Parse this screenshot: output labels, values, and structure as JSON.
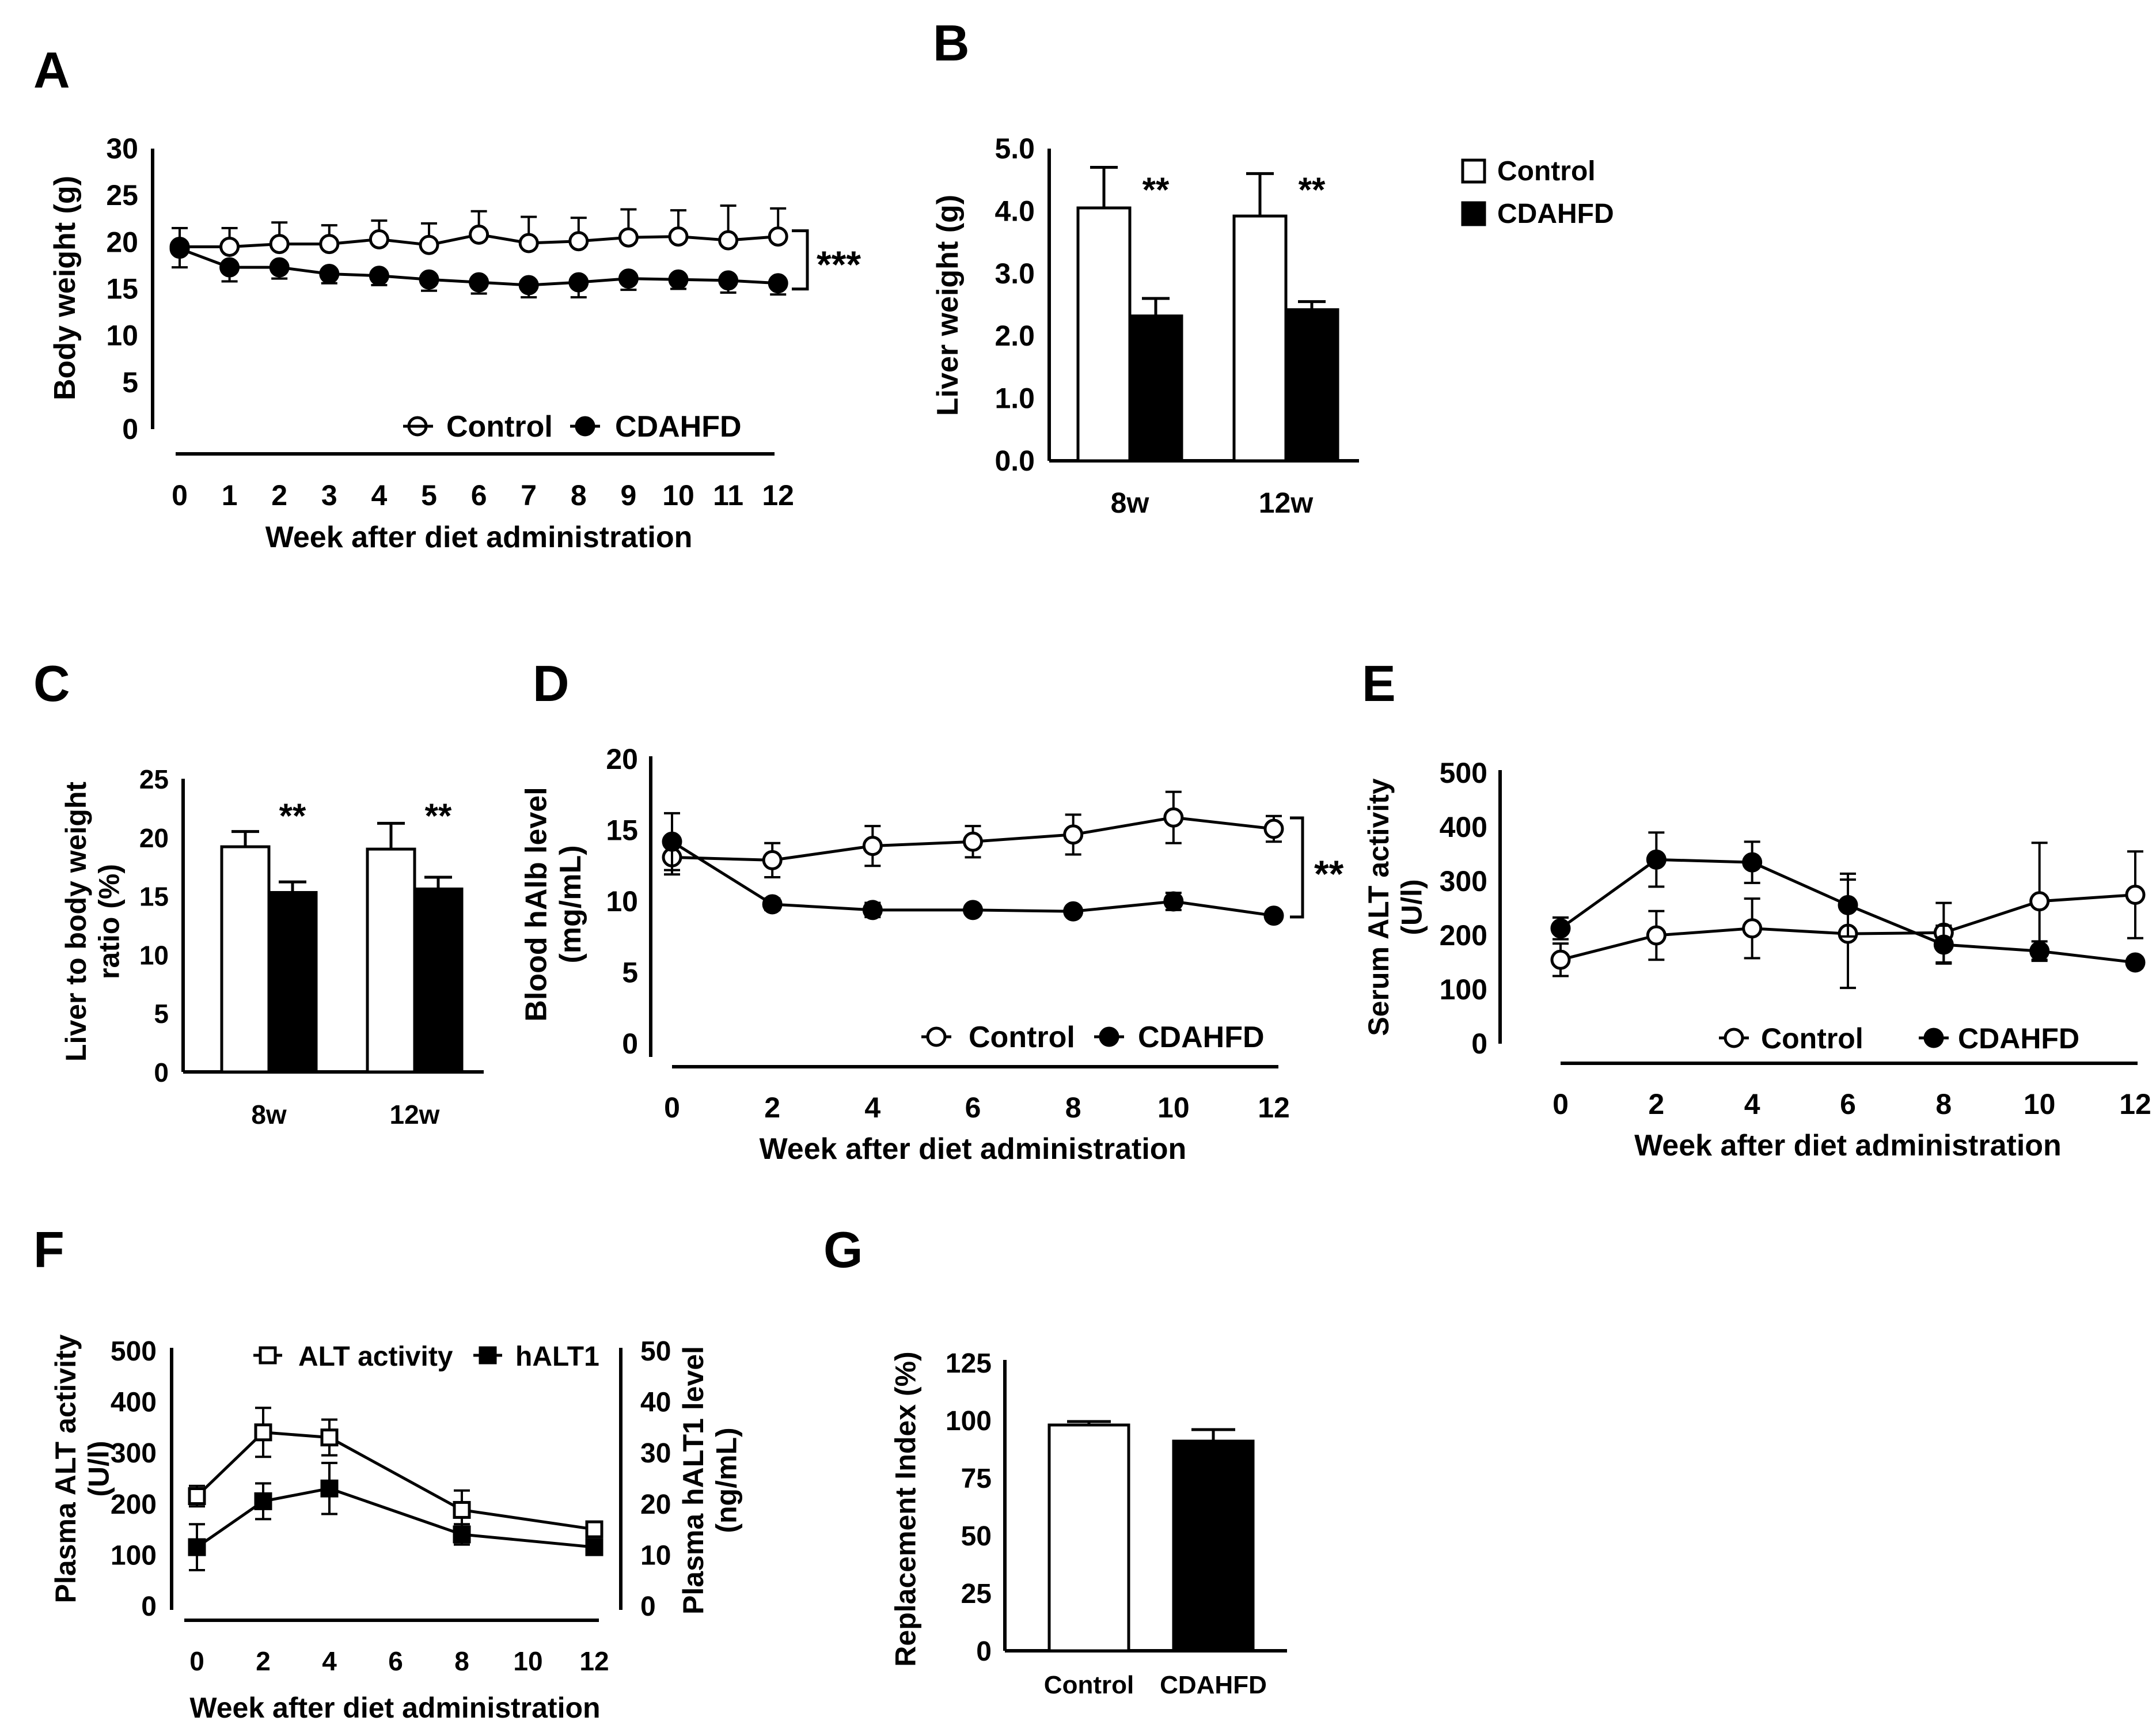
{
  "figure": {
    "colors": {
      "ink": "#000000",
      "control_fill": "#ffffff",
      "cdahfd_fill": "#000000"
    }
  },
  "chart_data": [
    {
      "panel": "A",
      "type": "line",
      "title": "",
      "xlabel": "Week after diet administration",
      "ylabel": "Body weight (g)",
      "x": [
        0,
        1,
        2,
        3,
        4,
        5,
        6,
        7,
        8,
        9,
        10,
        11,
        12
      ],
      "xticks": [
        "0",
        "1",
        "2",
        "3",
        "4",
        "5",
        "6",
        "7",
        "8",
        "9",
        "10",
        "11",
        "12"
      ],
      "ylim": [
        0,
        30
      ],
      "yticks": [
        "0",
        "5",
        "10",
        "15",
        "20",
        "25",
        "30"
      ],
      "legend": [
        "Control",
        "CDAHFD"
      ],
      "significance": "***",
      "series": [
        {
          "name": "Control",
          "marker": "circle-open",
          "values": [
            19.5,
            19.5,
            19.8,
            19.8,
            20.3,
            19.7,
            20.8,
            19.9,
            20.1,
            20.5,
            20.6,
            20.2,
            20.6
          ],
          "errors": [
            2.0,
            2.0,
            2.3,
            2.0,
            2.0,
            2.3,
            2.5,
            2.8,
            2.5,
            3.0,
            2.8,
            3.7,
            3.0
          ]
        },
        {
          "name": "CDAHFD",
          "marker": "circle-filled",
          "values": [
            19.3,
            17.3,
            17.3,
            16.6,
            16.4,
            16.0,
            15.7,
            15.4,
            15.7,
            16.1,
            16.0,
            15.9,
            15.6
          ],
          "errors": [
            2.0,
            1.5,
            1.2,
            1.0,
            1.0,
            1.2,
            1.2,
            1.3,
            1.6,
            1.2,
            1.0,
            1.3,
            1.2
          ]
        }
      ]
    },
    {
      "panel": "B",
      "type": "bar",
      "title": "",
      "xlabel": "",
      "ylabel": "Liver weight (g)",
      "categories": [
        "8w",
        "12w"
      ],
      "ylim": [
        0,
        5
      ],
      "yticks": [
        "0.0",
        "1.0",
        "2.0",
        "3.0",
        "4.0",
        "5.0"
      ],
      "legend": [
        "Control",
        "CDAHFD"
      ],
      "significance": [
        "**",
        "**"
      ],
      "series": [
        {
          "name": "Control",
          "values": [
            4.05,
            3.92
          ],
          "errors": [
            0.65,
            0.68
          ]
        },
        {
          "name": "CDAHFD",
          "values": [
            2.32,
            2.42
          ],
          "errors": [
            0.28,
            0.13
          ]
        }
      ]
    },
    {
      "panel": "C",
      "type": "bar",
      "title": "",
      "xlabel": "",
      "ylabel": "Liver to body weight ratio (%)",
      "ylabel_lines": [
        "Liver to body weight",
        "ratio (%)"
      ],
      "categories": [
        "8w",
        "12w"
      ],
      "ylim": [
        0,
        25
      ],
      "yticks": [
        "0",
        "5",
        "10",
        "15",
        "20",
        "25"
      ],
      "significance": [
        "**",
        "**"
      ],
      "series": [
        {
          "name": "Control",
          "values": [
            19.2,
            19.0
          ],
          "errors": [
            1.3,
            2.2
          ]
        },
        {
          "name": "CDAHFD",
          "values": [
            15.3,
            15.6
          ],
          "errors": [
            0.9,
            1.0
          ]
        }
      ]
    },
    {
      "panel": "D",
      "type": "line",
      "title": "",
      "xlabel": "Week after diet administration",
      "ylabel": "Blood hAlb level (mg/mL)",
      "ylabel_lines": [
        "Blood hAlb level",
        "(mg/mL)"
      ],
      "x": [
        0,
        2,
        4,
        6,
        8,
        10,
        12
      ],
      "xticks": [
        "0",
        "2",
        "4",
        "6",
        "8",
        "10",
        "12"
      ],
      "ylim": [
        0,
        20
      ],
      "yticks": [
        "0",
        "5",
        "10",
        "15",
        "20"
      ],
      "legend": [
        "Control",
        "CDAHFD"
      ],
      "significance": "**",
      "series": [
        {
          "name": "Control",
          "marker": "circle-open",
          "values": [
            13.1,
            12.9,
            13.9,
            14.2,
            14.7,
            15.9,
            15.1
          ],
          "errors": [
            1.2,
            1.2,
            1.4,
            1.1,
            1.4,
            1.8,
            0.9
          ]
        },
        {
          "name": "CDAHFD",
          "marker": "circle-filled",
          "values": [
            14.2,
            9.8,
            9.4,
            9.4,
            9.3,
            10.0,
            9.0
          ],
          "errors": [
            2.0,
            0.4,
            0.5,
            0.3,
            0.3,
            0.6,
            0.3
          ]
        }
      ]
    },
    {
      "panel": "E",
      "type": "line",
      "title": "",
      "xlabel": "Week after diet administration",
      "ylabel": "Serum ALT activity (U/l)",
      "ylabel_lines": [
        "Serum ALT activity",
        "(U/l)"
      ],
      "x": [
        0,
        2,
        4,
        6,
        8,
        10,
        12
      ],
      "xticks": [
        "0",
        "2",
        "4",
        "6",
        "8",
        "10",
        "12"
      ],
      "ylim": [
        0,
        500
      ],
      "yticks": [
        "0",
        "100",
        "200",
        "300",
        "400",
        "500"
      ],
      "legend": [
        "Control",
        "CDAHFD"
      ],
      "series": [
        {
          "name": "Control",
          "marker": "circle-open",
          "values": [
            155,
            200,
            213,
            203,
            205,
            263,
            275
          ],
          "errors": [
            30,
            45,
            55,
            100,
            55,
            108,
            80
          ]
        },
        {
          "name": "CDAHFD",
          "marker": "circle-filled",
          "values": [
            213,
            340,
            335,
            256,
            183,
            171,
            150
          ],
          "errors": [
            20,
            50,
            38,
            58,
            35,
            18,
            10
          ]
        }
      ]
    },
    {
      "panel": "F",
      "type": "line",
      "title": "",
      "xlabel": "Week after diet administration",
      "ylabel": "Plasma ALT activity (U/l)",
      "ylabel_lines": [
        "Plasma ALT activity",
        "(U/l)"
      ],
      "ylabel_right": "Plasma hALT1 level (ng/mL)",
      "ylabel_right_lines": [
        "Plasma hALT1 level",
        "(ng/mL)"
      ],
      "x": [
        0,
        2,
        4,
        8,
        12
      ],
      "xticks": [
        "0",
        "2",
        "4",
        "6",
        "8",
        "10",
        "12"
      ],
      "xtick_values": [
        0,
        2,
        4,
        6,
        8,
        10,
        12
      ],
      "ylim": [
        0,
        500
      ],
      "yticks": [
        "0",
        "100",
        "200",
        "300",
        "400",
        "500"
      ],
      "ylim_right": [
        0,
        50
      ],
      "yticks_right": [
        "0",
        "10",
        "20",
        "30",
        "40",
        "50"
      ],
      "legend": [
        "ALT activity",
        "hALT1"
      ],
      "series": [
        {
          "name": "ALT activity",
          "marker": "square-open",
          "axis": "left",
          "values": [
            215,
            340,
            330,
            188,
            150
          ],
          "errors": [
            20,
            48,
            35,
            38,
            8
          ]
        },
        {
          "name": "hALT1",
          "marker": "square-filled",
          "axis": "right",
          "values": [
            11.5,
            20.5,
            23.0,
            14.0,
            11.5
          ],
          "errors": [
            4.5,
            3.5,
            5.0,
            2.0,
            1.0
          ]
        }
      ]
    },
    {
      "panel": "G",
      "type": "bar",
      "title": "",
      "xlabel": "",
      "ylabel": "Replacement Index (%)",
      "categories": [
        "Control",
        "CDAHFD"
      ],
      "ylim": [
        0,
        125
      ],
      "yticks": [
        "0",
        "25",
        "50",
        "75",
        "100",
        "125"
      ],
      "series": [
        {
          "name": "Replacement Index",
          "values": [
            98,
            91
          ],
          "errors": [
            1.5,
            5.0
          ]
        }
      ]
    }
  ]
}
